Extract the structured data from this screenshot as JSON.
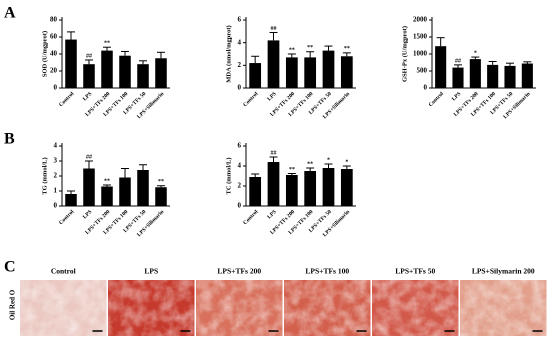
{
  "panel_labels": [
    "A",
    "B",
    "C"
  ],
  "chart_data": [
    {
      "type": "bar",
      "y_label": "SOD (U/mgprot)",
      "categories": [
        "Control",
        "LPS",
        "LPS+TFs 200",
        "LPS+TFs 100",
        "LPS+TFs 50",
        "LPS+Silimarin"
      ],
      "values": [
        57,
        28,
        44,
        38,
        28,
        35
      ],
      "errors": [
        9,
        5,
        4,
        5,
        4,
        7
      ],
      "annotations": [
        null,
        "##",
        "**",
        null,
        null,
        null
      ],
      "color": "#000000",
      "ylim": [
        0,
        80
      ],
      "yticks": [
        0,
        20,
        40,
        60,
        80
      ]
    },
    {
      "type": "bar",
      "y_label": "MDA (nmol/mgprot)",
      "categories": [
        "Control",
        "LPS",
        "LPS+TFs 200",
        "LPS+TFs 100",
        "LPS+TFs 50",
        "LPS+Silimarin"
      ],
      "values": [
        2.2,
        4.2,
        2.7,
        2.7,
        3.3,
        2.8
      ],
      "errors": [
        0.6,
        0.7,
        0.3,
        0.5,
        0.4,
        0.3
      ],
      "annotations": [
        null,
        "##",
        "**",
        "**",
        null,
        "**"
      ],
      "color": "#000000",
      "ylim": [
        0,
        6
      ],
      "yticks": [
        0,
        2,
        4,
        6
      ]
    },
    {
      "type": "bar",
      "y_label": "GSH-Px (U/mgprot)",
      "categories": [
        "Control",
        "LPS",
        "LPS+TFs 200",
        "LPS+TFs 100",
        "LPS+TFs 50",
        "LPS+Silimarin"
      ],
      "values": [
        1230,
        600,
        850,
        680,
        650,
        720
      ],
      "errors": [
        250,
        80,
        60,
        100,
        80,
        50
      ],
      "annotations": [
        null,
        "##",
        "*",
        null,
        null,
        null
      ],
      "color": "#000000",
      "ylim": [
        0,
        2000
      ],
      "yticks": [
        0,
        500,
        1000,
        1500,
        2000
      ]
    },
    {
      "type": "bar",
      "y_label": "TG (mmol/L)",
      "categories": [
        "Control",
        "LPS",
        "LPS+TFs 200",
        "LPS+TFs 100",
        "LPS+TFs 50",
        "LPS+Silimarin"
      ],
      "values": [
        0.8,
        2.5,
        1.3,
        1.9,
        2.4,
        1.25
      ],
      "errors": [
        0.2,
        0.5,
        0.1,
        0.6,
        0.35,
        0.1
      ],
      "annotations": [
        null,
        "##",
        "**",
        null,
        null,
        "**"
      ],
      "color": "#000000",
      "ylim": [
        0,
        4
      ],
      "yticks": [
        0,
        1,
        2,
        3,
        4
      ]
    },
    {
      "type": "bar",
      "y_label": "TC (mmol/L)",
      "categories": [
        "Control",
        "LPS",
        "LPS+TFs 200",
        "LPS+TFs 100",
        "LPS+TFs 50",
        "LPS+Silimarin"
      ],
      "values": [
        2.9,
        4.4,
        3.1,
        3.5,
        3.8,
        3.7
      ],
      "errors": [
        0.3,
        0.5,
        0.15,
        0.3,
        0.4,
        0.3
      ],
      "annotations": [
        null,
        "##",
        "**",
        "**",
        "*",
        "*"
      ],
      "color": "#000000",
      "ylim": [
        0,
        6
      ],
      "yticks": [
        0,
        2,
        4,
        6
      ]
    }
  ],
  "histology": {
    "stain": "Oil Red O",
    "labels": [
      "Control",
      "LPS",
      "LPS+TFs 200",
      "LPS+TFs 100",
      "LPS+TFs 50",
      "LPS+Silymarin 200"
    ]
  }
}
